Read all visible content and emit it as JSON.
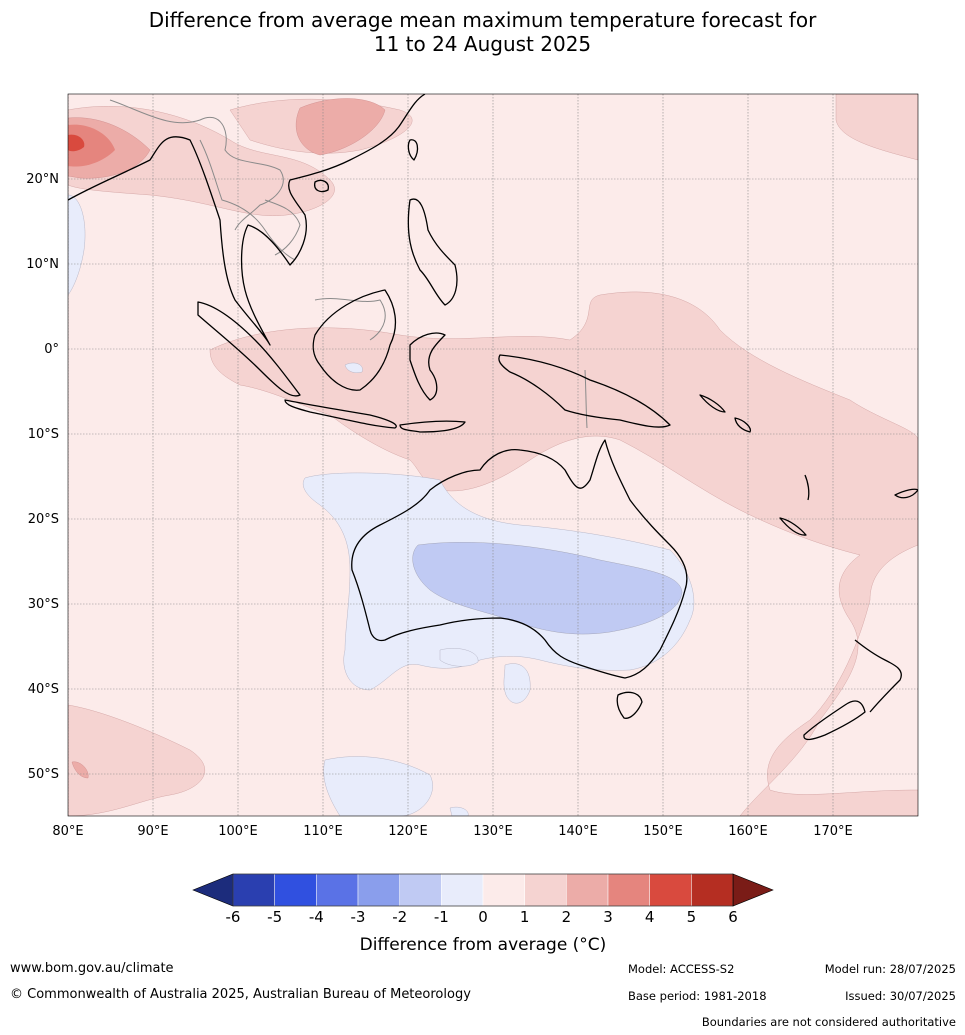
{
  "title": {
    "line1": "Difference from average mean maximum temperature forecast for",
    "line2": "11 to 24 August 2025"
  },
  "map": {
    "lon_labels": [
      "80°E",
      "90°E",
      "100°E",
      "110°E",
      "120°E",
      "130°E",
      "140°E",
      "150°E",
      "160°E",
      "170°E"
    ],
    "lat_labels": [
      "20°N",
      "10°N",
      "0°",
      "10°S",
      "20°S",
      "30°S",
      "40°S",
      "50°S"
    ],
    "extent": {
      "lon_min": 80,
      "lon_max": 180,
      "lat_min": -55,
      "lat_max": 30
    }
  },
  "colorbar": {
    "title": "Difference from average (°C)",
    "ticks": [
      "-6",
      "-5",
      "-4",
      "-3",
      "-2",
      "-1",
      "0",
      "1",
      "2",
      "3",
      "4",
      "5",
      "6"
    ],
    "colors": [
      "#1c2c7c",
      "#2a3fb0",
      "#3050e0",
      "#5a72e6",
      "#8a9eec",
      "#c0caf3",
      "#e8ecfb",
      "#fcebea",
      "#f5d3d1",
      "#ecaca8",
      "#e5857e",
      "#d94a3e",
      "#b52e22",
      "#7a1c17"
    ]
  },
  "footer": {
    "website": "www.bom.gov.au/climate",
    "copyright": "© Commonwealth of Australia 2025, Australian Bureau of Meteorology",
    "model": "Model: ACCESS-S2",
    "base_period": "Base period: 1981-2018",
    "model_run": "Model run: 28/07/2025",
    "issued": "Issued: 30/07/2025",
    "disclaimer": "Boundaries are not considered authoritative"
  }
}
